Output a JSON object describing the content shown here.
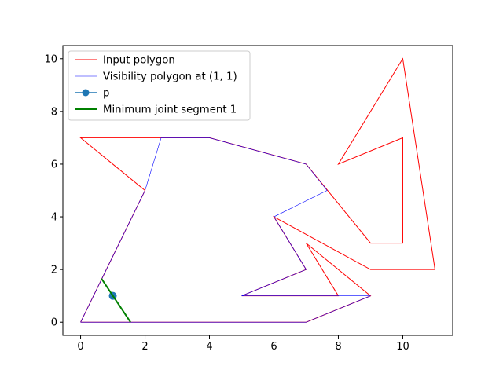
{
  "chart_data": {
    "type": "line",
    "title": "",
    "xlabel": "",
    "ylabel": "",
    "xlim": [
      -0.55,
      11.55
    ],
    "ylim": [
      -0.5,
      10.5
    ],
    "xticks": [
      0,
      2,
      4,
      6,
      8,
      10
    ],
    "yticks": [
      0,
      2,
      4,
      6,
      8,
      10
    ],
    "grid": false,
    "legend_position": "upper-left",
    "series": [
      {
        "name": "Input polygon",
        "color": "#ff0000",
        "style": "line",
        "points": [
          [
            0,
            0
          ],
          [
            7,
            0
          ],
          [
            9,
            1
          ],
          [
            7,
            3
          ],
          [
            8,
            1
          ],
          [
            5,
            1
          ],
          [
            7,
            2
          ],
          [
            6,
            4
          ],
          [
            9,
            2
          ],
          [
            11,
            2
          ],
          [
            10,
            10
          ],
          [
            8,
            6
          ],
          [
            10,
            7
          ],
          [
            10,
            3
          ],
          [
            9,
            3
          ],
          [
            7,
            6
          ],
          [
            4,
            7
          ],
          [
            0,
            7
          ],
          [
            2,
            5
          ],
          [
            0,
            0
          ]
        ]
      },
      {
        "name": "Visibility polygon at (1, 1)",
        "color": "#0000ff",
        "style": "thin-line",
        "points": [
          [
            0,
            0
          ],
          [
            7,
            0
          ],
          [
            9,
            1
          ],
          [
            5,
            1
          ],
          [
            7,
            2
          ],
          [
            6,
            4
          ],
          [
            7.65,
            5
          ],
          [
            7,
            6
          ],
          [
            4,
            7
          ],
          [
            2.5,
            7
          ],
          [
            2,
            5
          ],
          [
            0,
            0
          ]
        ]
      },
      {
        "name": "p",
        "color": "#1f77b4",
        "style": "marker",
        "points": [
          [
            1,
            1
          ]
        ]
      },
      {
        "name": "Minimum joint segment 1",
        "color": "#008000",
        "style": "thick-line",
        "points": [
          [
            0.65,
            1.65
          ],
          [
            1.55,
            0
          ]
        ]
      }
    ]
  }
}
